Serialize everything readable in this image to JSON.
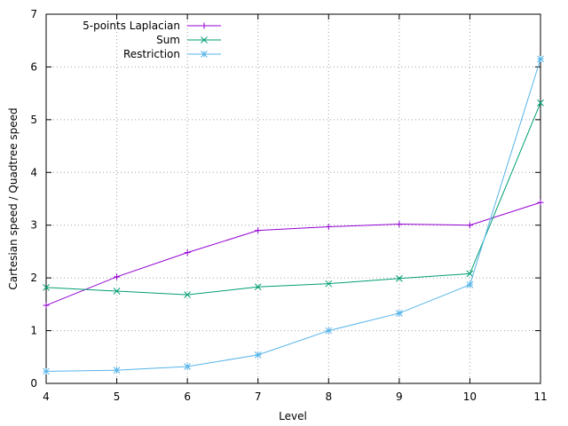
{
  "chart_data": {
    "type": "line",
    "title": "",
    "xlabel": "Level",
    "ylabel": "Cartesian speed / Quadtree speed",
    "x": [
      4,
      5,
      6,
      7,
      8,
      9,
      10,
      11
    ],
    "xlim": [
      4,
      11
    ],
    "ylim": [
      0,
      7
    ],
    "xticks": [
      "4",
      "5",
      "6",
      "7",
      "8",
      "9",
      "10",
      "11"
    ],
    "yticks": [
      "0",
      "1",
      "2",
      "3",
      "4",
      "5",
      "6",
      "7"
    ],
    "grid": true,
    "legend_position": "top-left",
    "series": [
      {
        "name": "5-points Laplacian",
        "color": "#9400d3",
        "marker": "plus",
        "values": [
          1.48,
          2.02,
          2.48,
          2.9,
          2.97,
          3.02,
          3.0,
          3.43
        ]
      },
      {
        "name": "Sum",
        "color": "#009e73",
        "marker": "cross",
        "values": [
          1.82,
          1.75,
          1.68,
          1.83,
          1.89,
          1.99,
          2.08,
          5.32
        ]
      },
      {
        "name": "Restriction",
        "color": "#56b4e9",
        "marker": "star",
        "values": [
          0.23,
          0.25,
          0.32,
          0.54,
          1.0,
          1.33,
          1.87,
          6.15
        ]
      }
    ]
  }
}
